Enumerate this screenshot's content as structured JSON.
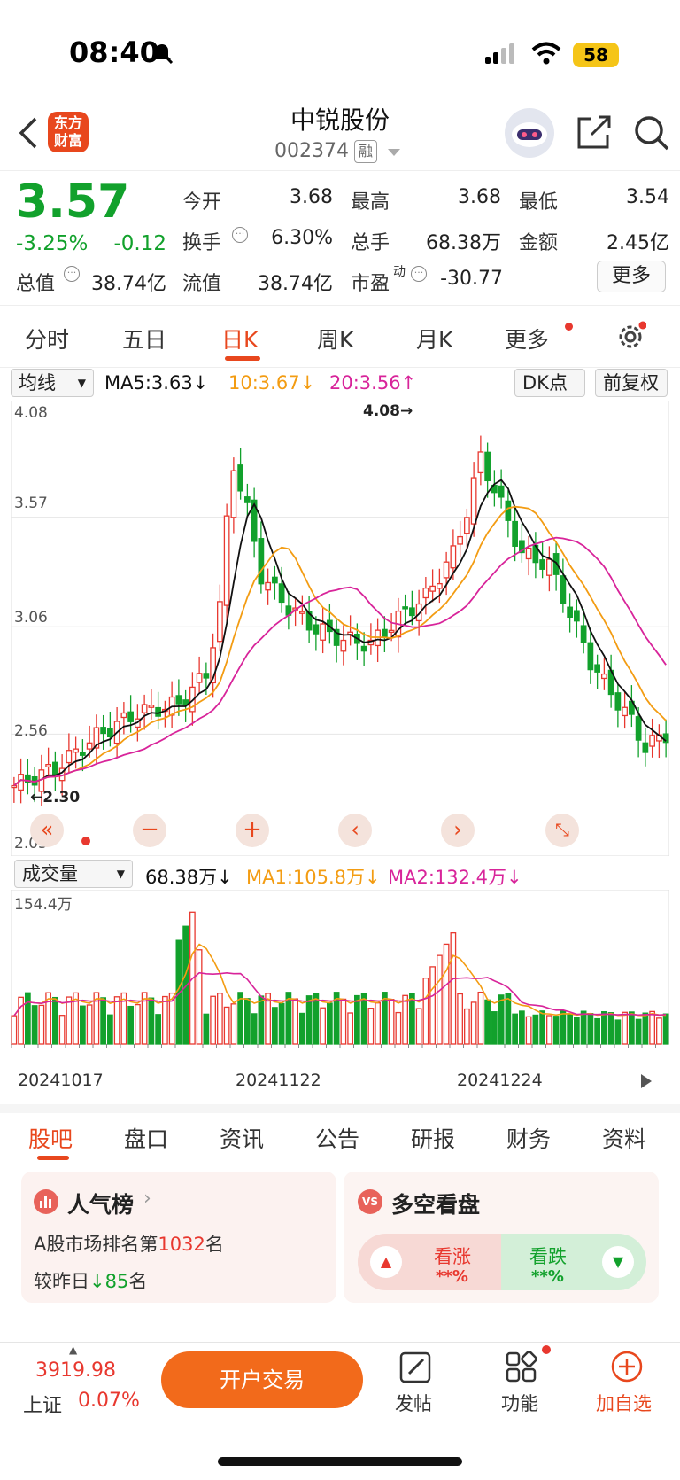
{
  "status": {
    "time": "08:40",
    "battery": "58"
  },
  "header": {
    "title": "中锐股份",
    "code": "002374",
    "badge": "融",
    "logo_line1": "东方",
    "logo_line2": "财富"
  },
  "quote": {
    "price": "3.57",
    "change_pct": "-3.25%",
    "change": "-0.12",
    "open_label": "今开",
    "open": "3.68",
    "high_label": "最高",
    "high": "3.68",
    "low_label": "最低",
    "low": "3.54",
    "turnover_label": "换手",
    "turnover": "6.30%",
    "volume_label": "总手",
    "volume": "68.38万",
    "amount_label": "金额",
    "amount": "2.45亿",
    "mcap_label": "总值",
    "mcap": "38.74亿",
    "float_label": "流值",
    "float": "38.74亿",
    "pe_label": "市盈",
    "pe_sup": "动",
    "pe": "-30.77",
    "more": "更多"
  },
  "chart_tabs": [
    "分时",
    "五日",
    "日K",
    "周K",
    "月K",
    "更多"
  ],
  "ma": {
    "select": "均线",
    "ma5": "MA5:3.63↓",
    "ma10": "10:3.67↓",
    "ma20": "20:3.56↑",
    "dk": "DK点",
    "fq": "前复权"
  },
  "colors": {
    "up": "#e8382f",
    "down": "#12a12c",
    "ma5": "#111111",
    "ma10": "#f39c12",
    "ma20": "#d8249a",
    "accent": "#e8471d"
  },
  "kline": {
    "y_ticks": [
      "4.08",
      "3.57",
      "3.06",
      "2.56",
      "2.05"
    ],
    "max_label": "4.08→",
    "min_label": "←2.30",
    "controls": [
      "chevrons-left-icon",
      "minus-icon",
      "plus-icon",
      "chevron-left-icon",
      "chevron-right-icon",
      "expand-icon"
    ]
  },
  "volume": {
    "select": "成交量",
    "vol": "68.38万↓",
    "ma1": "MA1:105.8万↓",
    "ma2": "MA2:132.4万↓",
    "y_max": "154.4万",
    "dates": [
      "20241017",
      "20241122",
      "20241224"
    ]
  },
  "bottom_tabs": [
    "股吧",
    "盘口",
    "资讯",
    "公告",
    "研报",
    "财务",
    "资料"
  ],
  "cards": {
    "rank_title": "人气榜",
    "rank_line_prefix": "A股市场排名第",
    "rank_num": "1032",
    "rank_suffix": "名",
    "rank_cmp_prefix": "较昨日",
    "rank_cmp_num": "85",
    "rank_cmp_suffix": "名",
    "ls_title": "多空看盘",
    "ls_badge": "VS",
    "bull": "看涨",
    "bull_pct": "**%",
    "bear": "看跌",
    "bear_pct": "**%"
  },
  "footer": {
    "index_value": "3919.98",
    "index_name": "上证",
    "index_pct": "0.07%",
    "open_btn": "开户交易",
    "post": "发帖",
    "func": "功能",
    "add": "加自选"
  }
}
